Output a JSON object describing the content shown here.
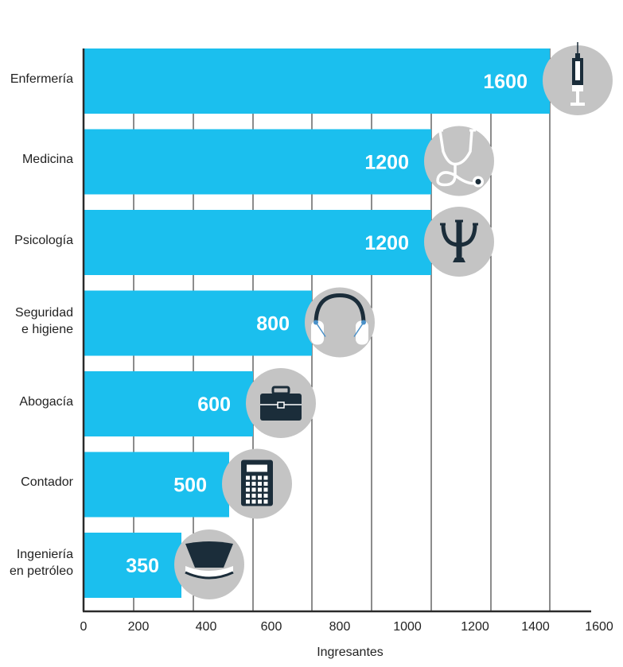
{
  "chart_data": {
    "type": "bar",
    "orientation": "horizontal",
    "categories": [
      "Enfermería",
      "Medicina",
      "Psicología",
      "Seguridad\ne higiene",
      "Abogacía",
      "Contador",
      "Ingeniería\nen petróleo"
    ],
    "values": [
      1600,
      1200,
      1200,
      800,
      600,
      500,
      350
    ],
    "value_labels": [
      "1600",
      "1200",
      "1200",
      "800",
      "600",
      "500",
      "350"
    ],
    "icons": [
      "syringe-icon",
      "stethoscope-icon",
      "psi-icon",
      "ear-protectors-icon",
      "briefcase-icon",
      "calculator-icon",
      "hard-hat-icon"
    ],
    "xlabel": "Ingresantes",
    "ylabel": "",
    "xticks": [
      "0",
      "200",
      "400",
      "600",
      "800",
      "1000",
      "1200",
      "1400",
      "1600"
    ],
    "xlim": [
      0,
      1600
    ],
    "grid": true,
    "colors": {
      "bar": "#1bbfee",
      "icon_circle": "#c4c4c4",
      "icon": "#1b2d3a",
      "axis": "#2a2a2a"
    }
  }
}
